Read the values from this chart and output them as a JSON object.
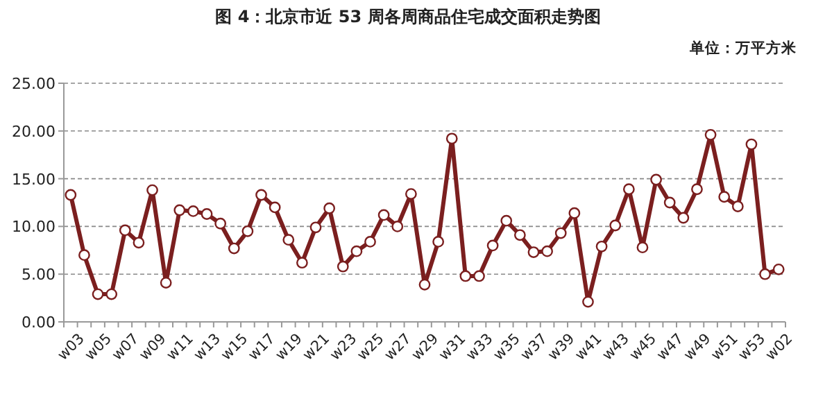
{
  "chart_data": {
    "type": "line",
    "title": "图 4：北京市近 53 周各周商品住宅成交面积走势图",
    "annotations": [
      "单位：万平方米"
    ],
    "categories": [
      "w03",
      null,
      "w05",
      null,
      "w07",
      null,
      "w09",
      null,
      "w11",
      null,
      "w13",
      null,
      "w15",
      null,
      "w17",
      null,
      "w19",
      null,
      "w21",
      null,
      "w23",
      null,
      "w25",
      null,
      "w27",
      null,
      "w29",
      null,
      "w31",
      null,
      "w33",
      null,
      "w35",
      null,
      "w37",
      null,
      "w39",
      null,
      "w41",
      null,
      "w43",
      null,
      "w45",
      null,
      "w47",
      null,
      "w49",
      null,
      "w51",
      null,
      "w53",
      null,
      "w02"
    ],
    "values": [
      13.3,
      7.0,
      2.9,
      2.9,
      9.6,
      8.3,
      13.8,
      4.1,
      11.7,
      11.6,
      11.3,
      10.3,
      7.7,
      9.5,
      13.3,
      12.0,
      8.6,
      6.2,
      9.9,
      11.9,
      5.8,
      7.4,
      8.4,
      11.2,
      10.0,
      13.4,
      3.9,
      8.4,
      19.2,
      4.8,
      4.8,
      8.0,
      10.6,
      9.1,
      7.3,
      7.4,
      9.3,
      11.4,
      2.1,
      7.9,
      10.1,
      13.9,
      7.8,
      14.9,
      12.5,
      10.9,
      13.9,
      19.6,
      13.1,
      12.1,
      18.6,
      5.0,
      5.5
    ],
    "color": "#7b1f1f",
    "marker": "circle",
    "line_style": "solid",
    "grid": "y",
    "legend": false,
    "ylim": [
      0,
      25
    ],
    "yticks": [
      {
        "value": 0,
        "label": "0.00"
      },
      {
        "value": 5,
        "label": "5.00"
      },
      {
        "value": 10,
        "label": "10.00"
      },
      {
        "value": 15,
        "label": "15.00"
      },
      {
        "value": 20,
        "label": "20.00"
      },
      {
        "value": 25,
        "label": "25.00"
      }
    ]
  }
}
